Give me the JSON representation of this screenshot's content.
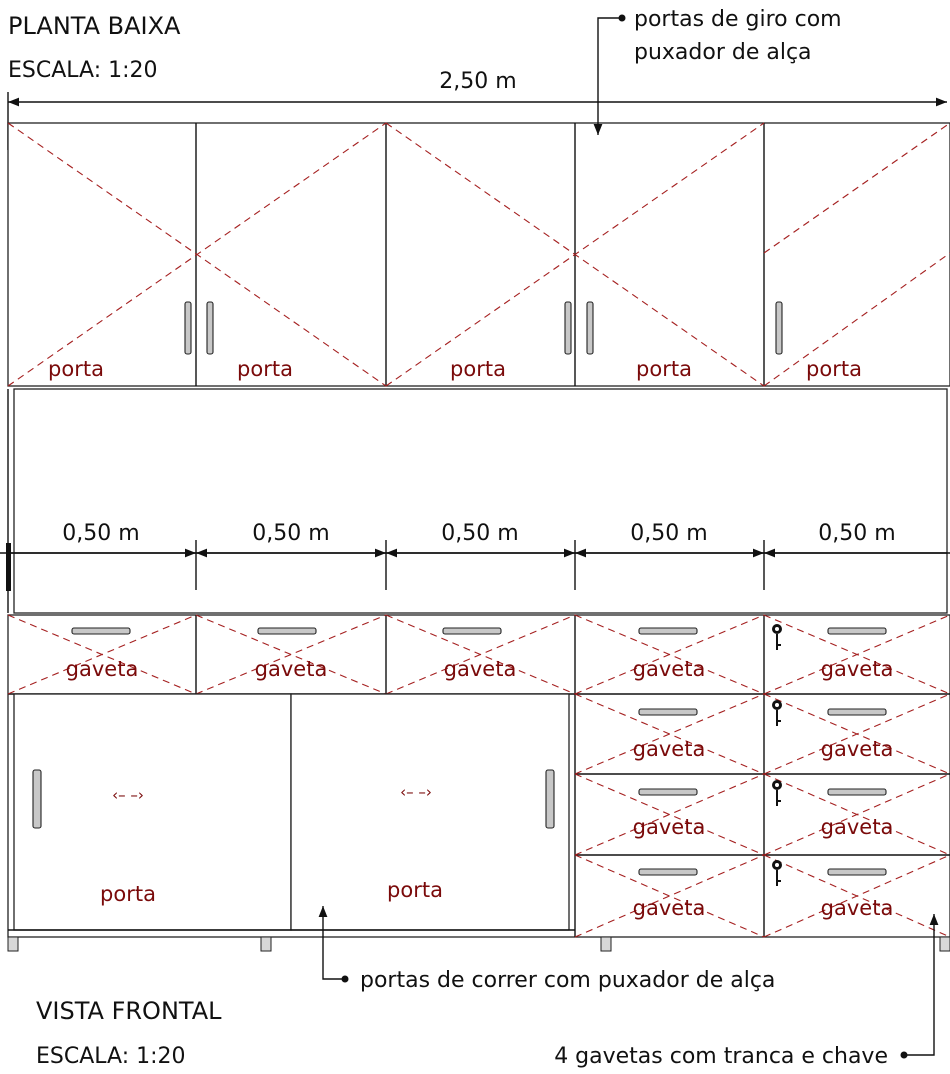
{
  "titles": {
    "plan_title": "PLANTA BAIXA",
    "plan_scale": "ESCALA: 1:20",
    "view_title": "VISTA FRONTAL",
    "view_scale": "ESCALA: 1:20"
  },
  "dimensions": {
    "total_width": "2,50 m",
    "module_widths": [
      "0,50 m",
      "0,50 m",
      "0,50 m",
      "0,50 m",
      "0,50 m"
    ]
  },
  "labels": {
    "upper_doors": [
      "porta",
      "porta",
      "porta",
      "porta",
      "porta"
    ],
    "drawers_top_row": [
      "gaveta",
      "gaveta",
      "gaveta",
      "gaveta",
      "gaveta"
    ],
    "drawers_right_stack": [
      "gaveta",
      "gaveta",
      "gaveta",
      "gaveta",
      "gaveta",
      "gaveta"
    ],
    "sliding_doors": [
      "porta",
      "porta"
    ],
    "sliding_arrow": "‹– –›"
  },
  "notes": {
    "hinged_doors_line1": "portas de giro com",
    "hinged_doors_line2": "puxador de alça",
    "sliding_doors": "portas de correr com puxador de alça",
    "lock_drawers": "4 gavetas com tranca e chave"
  }
}
